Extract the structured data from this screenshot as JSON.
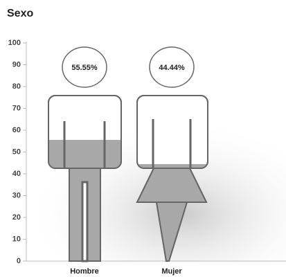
{
  "chart_data": {
    "type": "pictograph",
    "title": "Sexo",
    "categories": [
      "Hombre",
      "Mujer"
    ],
    "values": [
      55.55,
      44.44
    ],
    "value_labels": [
      "55.55%",
      "44.44%"
    ],
    "color": "#a8a8a8",
    "ylim": [
      0,
      100
    ],
    "yticks": [
      0,
      10,
      20,
      30,
      40,
      50,
      60,
      70,
      80,
      90,
      100
    ]
  }
}
